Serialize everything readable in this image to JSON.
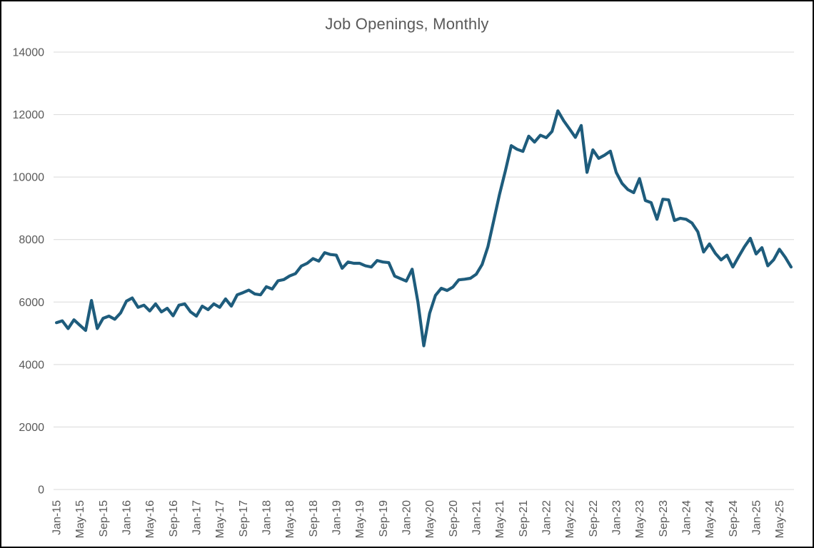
{
  "window": {
    "background": "#ffffff",
    "frame_border_color": "#000000"
  },
  "chart_data": {
    "type": "line",
    "title": "Job Openings, Monthly",
    "legend": "none",
    "grid": "horizontal",
    "x_first_month": "Jan-15",
    "x_last_month": "Jul-25",
    "x_tick_every_months": 4,
    "x_tick_labels": [
      "Jan-15",
      "May-15",
      "Sep-15",
      "Jan-16",
      "May-16",
      "Sep-16",
      "Jan-17",
      "May-17",
      "Sep-17",
      "Jan-18",
      "May-18",
      "Sep-18",
      "Jan-19",
      "May-19",
      "Sep-19",
      "Jan-20",
      "May-20",
      "Sep-20",
      "Jan-21",
      "May-21",
      "Sep-21",
      "Jan-22",
      "May-22",
      "Sep-22",
      "Jan-23",
      "May-23",
      "Sep-23",
      "Jan-24",
      "May-24",
      "Sep-24",
      "Jan-25",
      "May-25"
    ],
    "y_tick_labels": [
      "0",
      "2000",
      "4000",
      "6000",
      "8000",
      "10000",
      "12000",
      "14000"
    ],
    "y_ticks": [
      0,
      2000,
      4000,
      6000,
      8000,
      10000,
      12000,
      14000
    ],
    "ylim": [
      0,
      14000
    ],
    "series": [
      {
        "name": "Job Openings",
        "color": "#1e5c7c",
        "values": [
          5340,
          5400,
          5150,
          5430,
          5260,
          5090,
          6050,
          5150,
          5480,
          5550,
          5450,
          5650,
          6030,
          6130,
          5830,
          5900,
          5715,
          5940,
          5685,
          5800,
          5560,
          5900,
          5940,
          5685,
          5550,
          5870,
          5755,
          5940,
          5830,
          6100,
          5870,
          6230,
          6300,
          6380,
          6260,
          6230,
          6490,
          6415,
          6680,
          6720,
          6835,
          6910,
          7150,
          7240,
          7390,
          7310,
          7580,
          7520,
          7500,
          7080,
          7280,
          7240,
          7240,
          7160,
          7120,
          7330,
          7280,
          7260,
          6830,
          6750,
          6670,
          7050,
          6000,
          4600,
          5640,
          6210,
          6440,
          6370,
          6480,
          6710,
          6730,
          6760,
          6890,
          7200,
          7770,
          8610,
          9450,
          10200,
          11005,
          10890,
          10820,
          11310,
          11120,
          11340,
          11260,
          11460,
          12120,
          11800,
          11540,
          11270,
          11650,
          10150,
          10870,
          10600,
          10700,
          10830,
          10150,
          9800,
          9600,
          9500,
          9950,
          9250,
          9180,
          8650,
          9290,
          9270,
          8610,
          8680,
          8650,
          8530,
          8250,
          7600,
          7860,
          7560,
          7350,
          7500,
          7120,
          7450,
          7770,
          8040,
          7540,
          7740,
          7160,
          7350,
          7690,
          7430,
          7120
        ]
      }
    ],
    "colors": {
      "grid": "#d9d9d9",
      "axis_text": "#595959",
      "title_text": "#595959",
      "line": "#1e5c7c"
    }
  }
}
